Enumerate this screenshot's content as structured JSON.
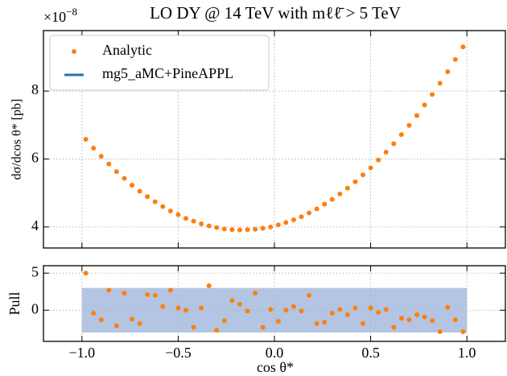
{
  "chart_data": [
    {
      "type": "line",
      "title": "LO DY @ 14 TeV with mℓℓ̄ > 5 TeV",
      "ylabel": "dσ/dcos θ* [pb]",
      "y_offset_label": {
        "base": "×10",
        "exponent": "−8"
      },
      "x": [
        -0.98,
        -0.94,
        -0.9,
        -0.86,
        -0.82,
        -0.78,
        -0.74,
        -0.7,
        -0.66,
        -0.62,
        -0.58,
        -0.54,
        -0.5,
        -0.46,
        -0.42,
        -0.38,
        -0.34,
        -0.3,
        -0.26,
        -0.22,
        -0.18,
        -0.14,
        -0.1,
        -0.06,
        -0.02,
        0.02,
        0.06,
        0.1,
        0.14,
        0.18,
        0.22,
        0.26,
        0.3,
        0.34,
        0.38,
        0.42,
        0.46,
        0.5,
        0.54,
        0.58,
        0.62,
        0.66,
        0.7,
        0.74,
        0.78,
        0.82,
        0.86,
        0.9,
        0.94,
        0.98
      ],
      "series": [
        {
          "name": "Analytic",
          "color": "#ff7f0e",
          "style": "marker",
          "values": [
            6.58,
            6.32,
            6.08,
            5.85,
            5.63,
            5.43,
            5.23,
            5.05,
            4.89,
            4.74,
            4.6,
            4.47,
            4.36,
            4.25,
            4.17,
            4.09,
            4.03,
            3.98,
            3.94,
            3.92,
            3.91,
            3.92,
            3.93,
            3.96,
            4.0,
            4.06,
            4.13,
            4.21,
            4.3,
            4.41,
            4.53,
            4.67,
            4.81,
            4.97,
            5.14,
            5.33,
            5.53,
            5.74,
            5.97,
            6.2,
            6.45,
            6.72,
            6.99,
            7.28,
            7.59,
            7.9,
            8.23,
            8.57,
            8.93,
            9.3
          ]
        },
        {
          "name": "mg5_aMC+PineAPPL",
          "color": "#1f77b4",
          "style": "step",
          "values": [
            6.58,
            6.32,
            6.08,
            5.85,
            5.63,
            5.43,
            5.23,
            5.05,
            4.89,
            4.74,
            4.6,
            4.47,
            4.36,
            4.25,
            4.17,
            4.09,
            4.03,
            3.98,
            3.94,
            3.92,
            3.91,
            3.92,
            3.93,
            3.96,
            4.0,
            4.06,
            4.13,
            4.21,
            4.3,
            4.41,
            4.53,
            4.67,
            4.81,
            4.97,
            5.14,
            5.33,
            5.53,
            5.74,
            5.97,
            6.2,
            6.45,
            6.72,
            6.99,
            7.28,
            7.59,
            7.9,
            8.23,
            8.57,
            8.93,
            9.3
          ]
        }
      ],
      "xlim": [
        -1.2,
        1.2
      ],
      "xticks": [
        -1,
        -0.5,
        0,
        0.5,
        1
      ],
      "xtick_labels": false,
      "ylim": [
        3.38,
        9.78
      ],
      "yticks": [
        4,
        6,
        8
      ],
      "grid": true,
      "legend": "upper left"
    },
    {
      "type": "scatter",
      "xlabel": "cos θ*",
      "ylabel": "Pull",
      "x": [
        -0.98,
        -0.94,
        -0.9,
        -0.86,
        -0.82,
        -0.78,
        -0.74,
        -0.7,
        -0.66,
        -0.62,
        -0.58,
        -0.54,
        -0.5,
        -0.46,
        -0.42,
        -0.38,
        -0.34,
        -0.3,
        -0.26,
        -0.22,
        -0.18,
        -0.14,
        -0.1,
        -0.06,
        -0.02,
        0.02,
        0.06,
        0.1,
        0.14,
        0.18,
        0.22,
        0.26,
        0.3,
        0.34,
        0.38,
        0.42,
        0.46,
        0.5,
        0.54,
        0.58,
        0.62,
        0.66,
        0.7,
        0.74,
        0.78,
        0.82,
        0.86,
        0.9,
        0.94,
        0.98
      ],
      "values": [
        5.0,
        -0.4,
        -1.3,
        2.7,
        -2.1,
        2.3,
        -1.2,
        -1.8,
        2.1,
        2.0,
        0.5,
        2.7,
        0.3,
        0.0,
        -2.3,
        0.3,
        3.3,
        -2.7,
        -1.4,
        1.3,
        0.8,
        -0.1,
        2.3,
        -2.3,
        0.1,
        -1.5,
        0.0,
        0.5,
        -0.1,
        2.0,
        -1.8,
        -1.6,
        -0.4,
        0.1,
        -0.6,
        0.3,
        -1.8,
        0.3,
        -0.3,
        0.1,
        -2.3,
        -1.1,
        -1.3,
        -0.6,
        -0.9,
        -1.4,
        -2.9,
        0.4,
        -1.3,
        -2.9
      ],
      "color": "#ff7f0e",
      "band": {
        "x_range": [
          -1,
          1
        ],
        "y_range": [
          -3,
          3
        ],
        "color": "#b3c5e3"
      },
      "xlim": [
        -1.2,
        1.2
      ],
      "xticks": [
        {
          "value": -1,
          "label": "−1.0"
        },
        {
          "value": -0.5,
          "label": "−0.5"
        },
        {
          "value": 0,
          "label": "0.0"
        },
        {
          "value": 0.5,
          "label": "0.5"
        },
        {
          "value": 1,
          "label": "1.0"
        }
      ],
      "ylim": [
        -4.2,
        6
      ],
      "yticks": [
        0,
        5
      ],
      "grid": true
    }
  ]
}
